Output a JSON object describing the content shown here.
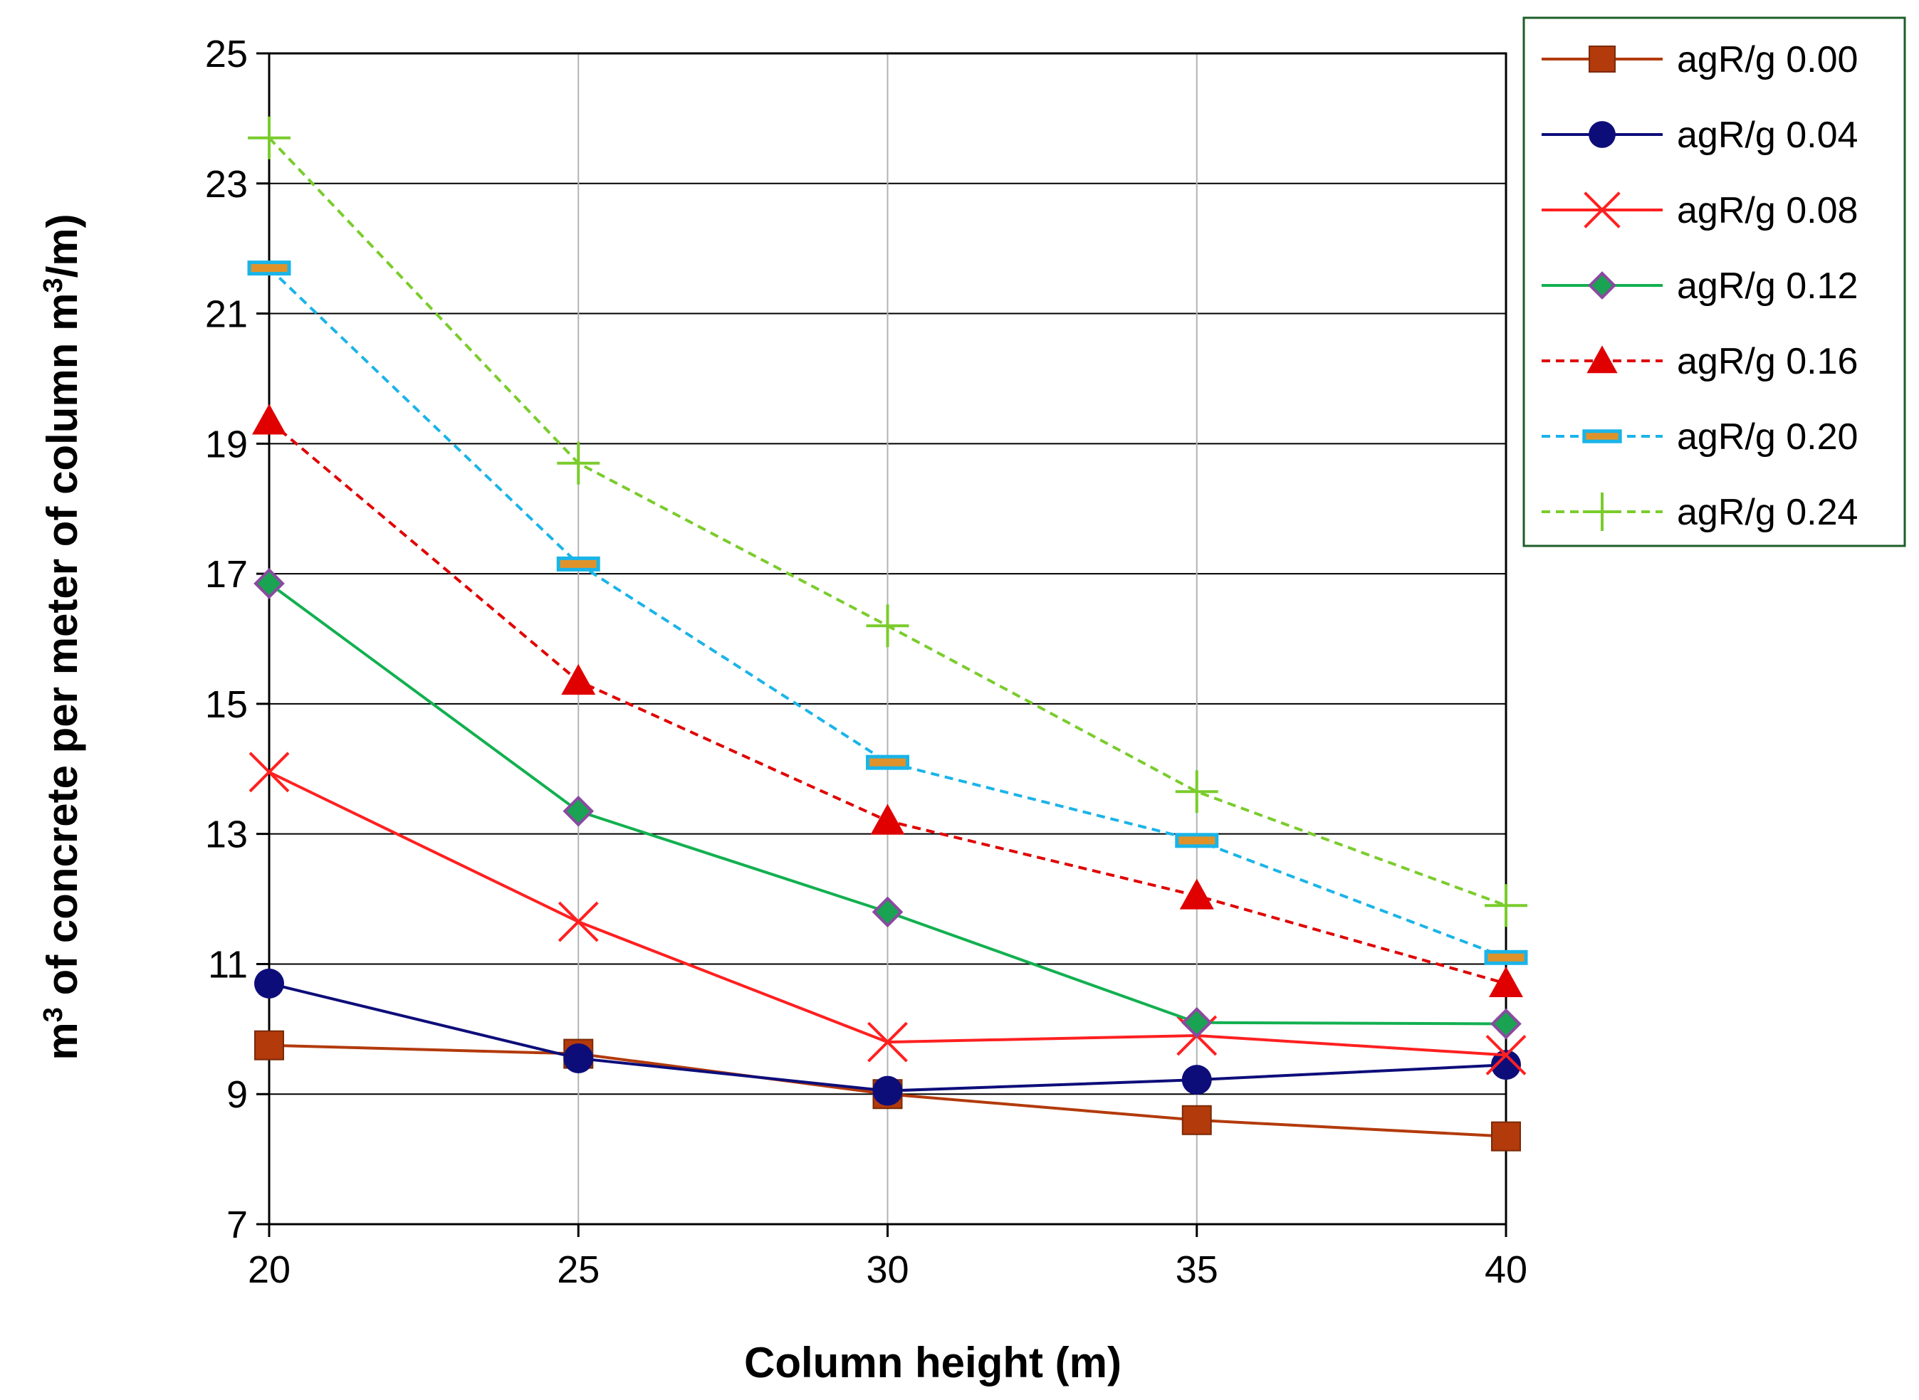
{
  "chart_data": {
    "type": "line",
    "title": "",
    "xlabel": "Column height (m)",
    "ylabel_main": "m",
    "ylabel_sup": "3",
    "ylabel_mid": " of concrete per meter of column m",
    "ylabel_sup2": "3",
    "ylabel_end": "/m)",
    "x": [
      20,
      25,
      30,
      35,
      40
    ],
    "xlim": [
      20,
      40
    ],
    "ylim": [
      7,
      25
    ],
    "xticks": [
      "20",
      "25",
      "30",
      "35",
      "40"
    ],
    "yticks": [
      "7",
      "9",
      "11",
      "13",
      "15",
      "17",
      "19",
      "21",
      "23",
      "25"
    ],
    "grid": true,
    "legend_position": "top-right",
    "series": [
      {
        "name": "agR/g 0.00",
        "values": [
          9.75,
          9.62,
          9.0,
          8.6,
          8.35
        ],
        "color": "#B33A0B",
        "marker": "square",
        "dashed": false
      },
      {
        "name": "agR/g 0.04",
        "values": [
          10.7,
          9.55,
          9.05,
          9.22,
          9.45
        ],
        "color": "#0D0D7A",
        "marker": "circle",
        "dashed": false
      },
      {
        "name": "agR/g 0.08",
        "values": [
          13.95,
          11.65,
          9.8,
          9.9,
          9.6
        ],
        "color": "#FF2020",
        "marker": "x",
        "dashed": false
      },
      {
        "name": "agR/g 0.12",
        "values": [
          16.85,
          13.35,
          11.8,
          10.1,
          10.08
        ],
        "color": "#12B050",
        "marker": "diamond",
        "dashed": false
      },
      {
        "name": "agR/g 0.16",
        "values": [
          19.35,
          15.35,
          13.2,
          12.05,
          10.7
        ],
        "color": "#E00000",
        "marker": "triangle",
        "dashed": true
      },
      {
        "name": "agR/g 0.20",
        "values": [
          21.7,
          17.15,
          14.1,
          12.9,
          11.1
        ],
        "color": "#1AB4E8",
        "marker": "dash",
        "dashed": true
      },
      {
        "name": "agR/g 0.24",
        "values": [
          23.7,
          18.7,
          16.2,
          13.65,
          11.9
        ],
        "color": "#7ACC2C",
        "marker": "plus",
        "dashed": true
      }
    ]
  }
}
